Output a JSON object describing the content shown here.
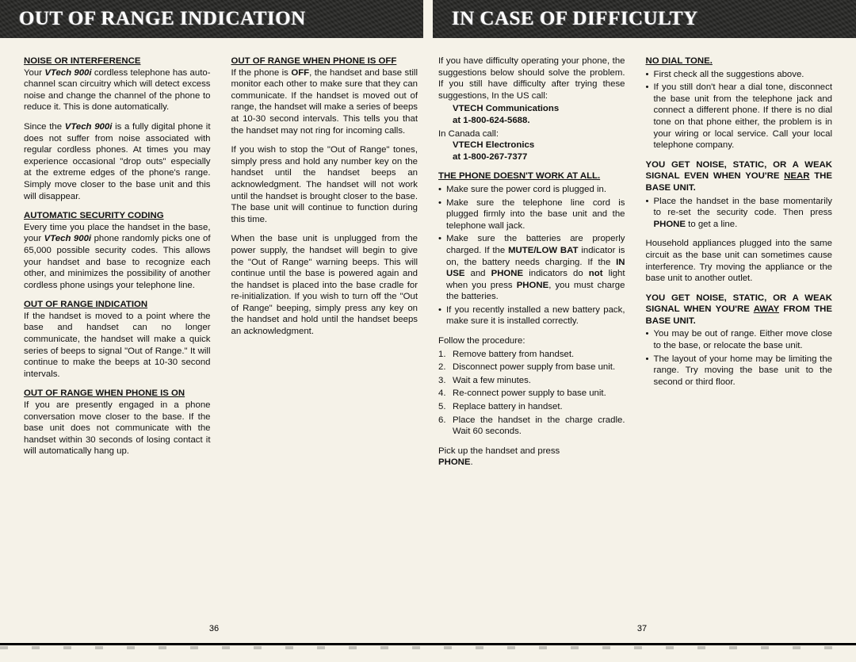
{
  "banner_left": "OUT OF RANGE INDICATION",
  "banner_right": "IN CASE OF DIFFICULTY",
  "page_left": "36",
  "page_right": "37",
  "col1": {
    "h1": "NOISE OR INTERFERENCE",
    "p1a": "Your ",
    "p1b": "VTech 900i",
    "p1c": " cordless telephone has auto-channel scan circuitry which will detect excess noise and change the channel of the phone to reduce it. This is done automatically.",
    "p2a": "Since the ",
    "p2b": "VTech 900i",
    "p2c": " is a fully digital phone it does not suffer from noise associated with regular cordless phones. At times you may experience occasional \"drop outs\" especially at the extreme edges of the phone's range. Simply move closer to the base unit and this will disappear.",
    "h2": "AUTOMATIC SECURITY CODING",
    "p3a": "Every time you place the handset in the base, your ",
    "p3b": "VTech 900i",
    "p3c": " phone randomly picks one of 65,000 possible security codes. This allows your handset and base to recognize each other, and minimizes the possibility of another cordless phone usings your telephone line.",
    "h3": "OUT OF RANGE INDICATION",
    "p4": "If the handset is moved to a point where the base and handset can no longer communicate, the handset will make a quick series of beeps to signal \"Out of Range.\" It will continue to make the beeps at 10-30 second intervals.",
    "h4": "OUT OF RANGE WHEN PHONE IS ON",
    "p5": "If you are presently engaged in a phone conversation move closer to the base. If the base unit does not communicate with the handset within 30 seconds of losing contact it will automatically hang up."
  },
  "col2": {
    "h1": "OUT OF RANGE WHEN PHONE IS OFF",
    "p1a": "If the phone is ",
    "p1b": "OFF",
    "p1c": ", the handset and base still monitor each other to make sure that they can communicate. If the handset is moved out of range, the handset will make a series of beeps at 10-30 second intervals. This tells you that the handset may not ring for incoming calls.",
    "p2": "If you wish to stop the \"Out of Range\" tones, simply press and hold any number key on the handset until the handset beeps an acknowledgment. The handset will not work until the handset is brought closer to the base. The base unit will continue to function during this time.",
    "p3": "When the base unit is unplugged from the power supply, the handset will begin to give the \"Out of Range\" warning beeps. This will continue until the base is powered again and the handset is placed into the base cradle for re-initialization. If you wish to turn off the \"Out of Range\" beeping, simply press any key on the handset and hold until the handset beeps an acknowledgment."
  },
  "col3": {
    "p1": "If you have difficulty operating your phone, the suggestions below should solve the problem. If you still have difficulty after trying these suggestions, In the US call:",
    "us1": "VTECH Communications",
    "us2": "at 1-800-624-5688.",
    "canlabel": "In Canada call:",
    "ca1": "VTECH Electronics",
    "ca2": "at 1-800-267-7377",
    "h1": "THE PHONE DOESN'T WORK AT ALL.",
    "b1": "Make sure the power cord is plugged in.",
    "b2": "Make sure the telephone line cord is plugged firmly into the base unit and the telephone wall jack.",
    "b3a": "Make sure the batteries are properly charged. If the ",
    "b3b": "MUTE/LOW BAT",
    "b3c": " indicator is on, the battery needs charging. If the ",
    "b3d": "IN USE",
    "b3e": " and ",
    "b3f": "PHONE",
    "b3g": " indicators do ",
    "b3h": "not",
    "b3i": " light when you press ",
    "b3j": "PHONE",
    "b3k": ", you must charge the batteries.",
    "b4": "If you recently installed a new battery pack, make sure it is installed correctly.",
    "fplabel": "Follow the procedure:",
    "s1": "Remove battery from handset.",
    "s2": "Disconnect power supply from base unit.",
    "s3": "Wait a few minutes.",
    "s4": "Re-connect power supply to base unit.",
    "s5": "Replace battery in handset.",
    "s6": "Place the handset in the charge cradle. Wait 60 seconds.",
    "p2a": "Pick up the handset and press ",
    "p2b": "PHONE",
    "p2c": "."
  },
  "col4": {
    "h1": "NO DIAL TONE.",
    "b1": "First check all the suggestions above.",
    "b2": "If you still don't hear a dial tone, disconnect the base unit from the telephone jack and connect a different phone. If there is no dial tone on that phone either, the problem is in your wiring or local service. Call your local telephone company.",
    "h2a": "YOU GET NOISE, STATIC, OR A WEAK SIGNAL EVEN WHEN YOU'RE ",
    "h2b": "NEAR",
    "h2c": " THE BASE UNIT.",
    "b3a": "Place the handset in the base momentarily to re-set the security code. Then press ",
    "b3b": "PHONE",
    "b3c": " to get a line.",
    "p1": "Household appliances plugged into the same circuit as the base unit can sometimes cause interference. Try moving the appliance or the base unit to another outlet.",
    "h3a": "YOU GET NOISE, STATIC, OR A WEAK SIGNAL WHEN YOU'RE ",
    "h3b": "AWAY",
    "h3c": " FROM THE BASE UNIT.",
    "b4": "You may be out of range. Either move close to the base, or relocate the base unit.",
    "b5": "The layout of your home may be limiting the range. Try moving the base unit to the second or third floor."
  }
}
